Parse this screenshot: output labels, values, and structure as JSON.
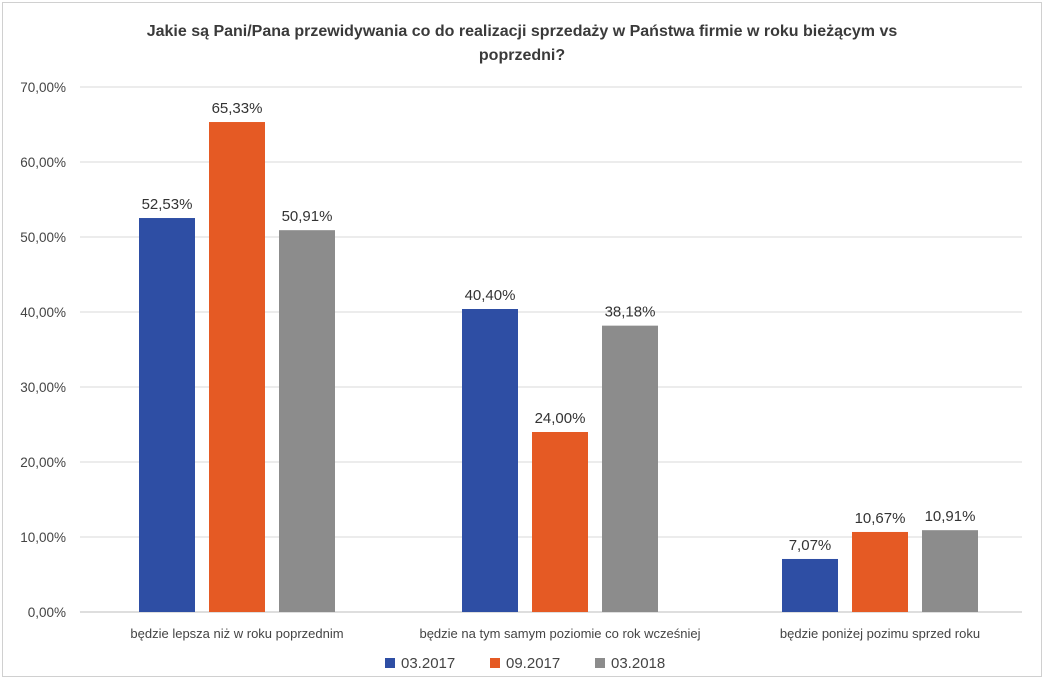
{
  "chart_data": {
    "type": "bar",
    "title": [
      "Jakie są Pani/Pana  przewidywania co do realizacji sprzedaży w Państwa firmie w roku bieżącym vs",
      "poprzedni?"
    ],
    "categories": [
      "będzie lepsza niż w roku poprzednim",
      "będzie na tym samym poziomie co rok wcześniej",
      "będzie poniżej pozimu sprzed roku"
    ],
    "series": [
      {
        "name": "03.2017",
        "color": "#2e4ea4",
        "values": [
          52.53,
          40.4,
          7.07
        ],
        "labels": [
          "52,53%",
          "40,40%",
          "7,07%"
        ]
      },
      {
        "name": "09.2017",
        "color": "#e55a24",
        "values": [
          65.33,
          24.0,
          10.67
        ],
        "labels": [
          "65,33%",
          "24,00%",
          "10,67%"
        ]
      },
      {
        "name": "03.2018",
        "color": "#8c8c8c",
        "values": [
          50.91,
          38.18,
          10.91
        ],
        "labels": [
          "50,91%",
          "38,18%",
          "10,91%"
        ]
      }
    ],
    "ylim": [
      0,
      70
    ],
    "yticks": [
      0,
      10,
      20,
      30,
      40,
      50,
      60,
      70
    ],
    "ytick_labels": [
      "0,00%",
      "10,00%",
      "20,00%",
      "30,00%",
      "40,00%",
      "50,00%",
      "60,00%",
      "70,00%"
    ],
    "grid": true,
    "legend": "bottom"
  }
}
